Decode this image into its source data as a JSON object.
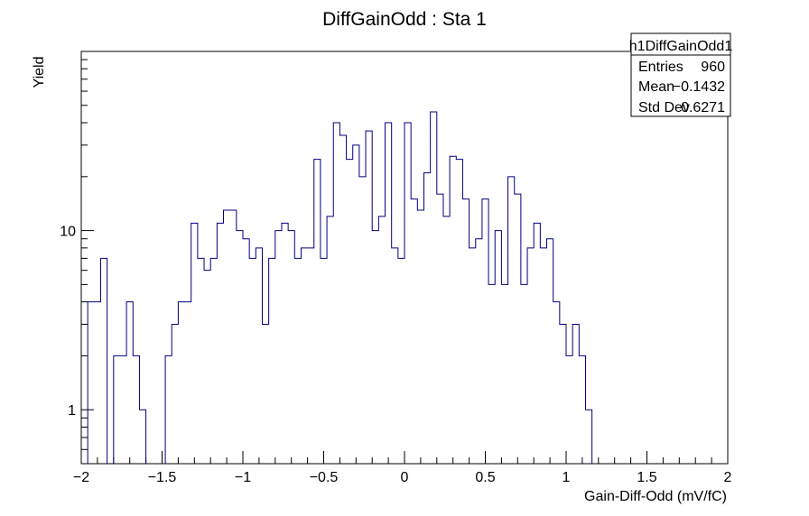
{
  "chart_data": {
    "type": "bar",
    "title": "DiffGainOdd : Sta 1",
    "xlabel": "Gain-Diff-Odd (mV/fC)",
    "ylabel": "Yield",
    "xlim": [
      -2,
      2
    ],
    "ylim": [
      0.5,
      100
    ],
    "yscale": "log",
    "bin_width": 0.04,
    "x_ticks": [
      {
        "value": -2,
        "label": "−2"
      },
      {
        "value": -1.5,
        "label": "−1.5"
      },
      {
        "value": -1,
        "label": "−1"
      },
      {
        "value": -0.5,
        "label": "−0.5"
      },
      {
        "value": 0,
        "label": "0"
      },
      {
        "value": 0.5,
        "label": "0.5"
      },
      {
        "value": 1,
        "label": "1"
      },
      {
        "value": 1.5,
        "label": "1.5"
      },
      {
        "value": 2,
        "label": "2"
      }
    ],
    "y_ticks": [
      {
        "value": 1,
        "label": "1"
      },
      {
        "value": 10,
        "label": "10"
      }
    ],
    "grid": false,
    "line_color": "#000080",
    "values": [
      0,
      4,
      4,
      7,
      0,
      2,
      2,
      4,
      2,
      1,
      0,
      0,
      0,
      2,
      3,
      4,
      4,
      11,
      7,
      6,
      7,
      11,
      13,
      13,
      10,
      9,
      7,
      8,
      3,
      7,
      10,
      11,
      10,
      7,
      8,
      8,
      25,
      7,
      12,
      40,
      34,
      25,
      30,
      20,
      36,
      10,
      12,
      40,
      8,
      7,
      40,
      15,
      13,
      21,
      46,
      16,
      12,
      26,
      25,
      15,
      8,
      9,
      15,
      5,
      10,
      5,
      20,
      16,
      5,
      8,
      11,
      8,
      9,
      4,
      3,
      2,
      3,
      2,
      1,
      0,
      0,
      0,
      0,
      0,
      0,
      0,
      0,
      0,
      0,
      0,
      0,
      0,
      0,
      0,
      0,
      0,
      0,
      0,
      0,
      0
    ],
    "stats_box": {
      "title": "h1DiffGainOdd1",
      "rows": [
        {
          "label": "Entries",
          "value": "960"
        },
        {
          "label": "Mean",
          "value": "−0.1432"
        },
        {
          "label": "Std Dev",
          "value": "0.6271"
        }
      ]
    }
  }
}
